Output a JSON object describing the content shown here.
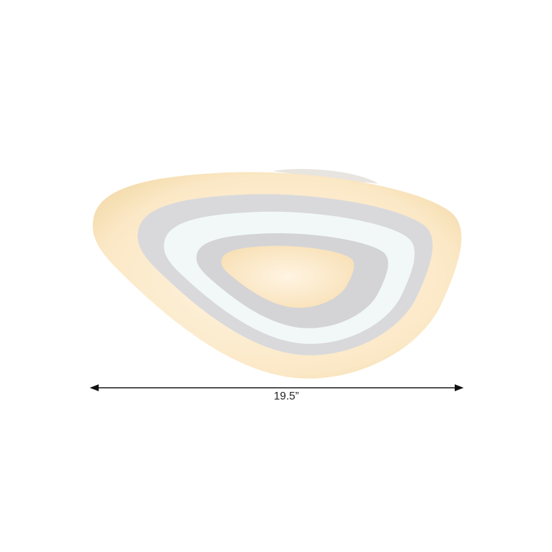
{
  "product": {
    "dimension_label": "19.5”",
    "colors": {
      "warm_acrylic": "#fbe6c2",
      "grey_band": "#d9d9db",
      "cool_white_band": "#f2f8f8",
      "arrow": "#111111"
    }
  }
}
